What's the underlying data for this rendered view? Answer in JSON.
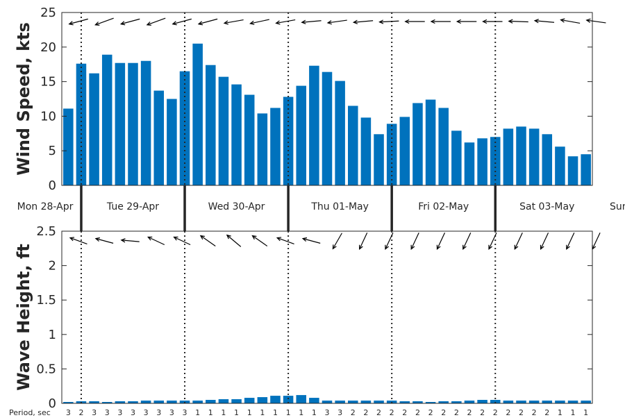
{
  "colors": {
    "bar": "#0072BD",
    "axis": "#262626",
    "arrow": "#000000"
  },
  "days": [
    "Mon 28-Apr",
    "Tue 29-Apr",
    "Wed 30-Apr",
    "Thu 01-May",
    "Fri 02-May",
    "Sat 03-May",
    "Sun"
  ],
  "period_label": "Period, sec",
  "chart_data": [
    {
      "type": "bar",
      "name": "wind",
      "ylabel": "Wind Speed, kts",
      "ylim": [
        0,
        25
      ],
      "yticks": [
        0,
        5,
        10,
        15,
        20,
        25
      ],
      "grid": false,
      "values": [
        11.1,
        17.6,
        16.2,
        18.9,
        17.7,
        17.7,
        18.0,
        13.7,
        12.5,
        16.5,
        20.5,
        17.4,
        15.7,
        14.6,
        13.1,
        10.4,
        11.2,
        12.8,
        14.4,
        17.3,
        16.4,
        15.1,
        11.5,
        9.8,
        7.4,
        8.9,
        9.9,
        11.9,
        12.4,
        11.2,
        7.9,
        6.2,
        6.8,
        7.0,
        8.2,
        8.5,
        8.2,
        7.4,
        5.6,
        4.2,
        4.5
      ],
      "direction_arrows_deg": [
        -15,
        -20,
        -15,
        -20,
        -15,
        -15,
        -10,
        -12,
        -10,
        -5,
        -8,
        -5,
        -3,
        0,
        0,
        0,
        0,
        2,
        5,
        10,
        8
      ]
    },
    {
      "type": "bar",
      "name": "wave",
      "ylabel": "Wave Height, ft",
      "ylim": [
        0,
        2.5
      ],
      "yticks": [
        0,
        0.5,
        1,
        1.5,
        2,
        2.5
      ],
      "ytick_labels": [
        "0",
        "0.5",
        "1",
        "1.5",
        "2",
        "2.5"
      ],
      "grid": false,
      "values": [
        0.02,
        0.03,
        0.03,
        0.02,
        0.03,
        0.03,
        0.04,
        0.04,
        0.04,
        0.04,
        0.04,
        0.05,
        0.06,
        0.06,
        0.08,
        0.09,
        0.11,
        0.11,
        0.12,
        0.08,
        0.04,
        0.04,
        0.04,
        0.04,
        0.04,
        0.04,
        0.03,
        0.03,
        0.02,
        0.03,
        0.03,
        0.04,
        0.05,
        0.05,
        0.04,
        0.04,
        0.04,
        0.04,
        0.04,
        0.04,
        0.04
      ],
      "periods": [
        "3",
        "2",
        "3",
        "3",
        "3",
        "3",
        "3",
        "3",
        "3",
        "3",
        "1",
        "1",
        "1",
        "1",
        "1",
        "1",
        "1",
        "1",
        "1",
        "1",
        "3",
        "3",
        "2",
        "2",
        "2",
        "2",
        "2",
        "2",
        "2",
        "2",
        "2",
        "2",
        "2",
        "2",
        "2",
        "2",
        "2",
        "2",
        "1",
        "1",
        "1"
      ],
      "direction_arrows_deg": [
        -30,
        -35,
        -45,
        -25,
        -25,
        -15,
        -10,
        -15,
        -30,
        -35,
        20,
        15,
        15,
        15,
        15,
        15,
        15,
        15,
        15,
        15,
        15
      ]
    }
  ]
}
